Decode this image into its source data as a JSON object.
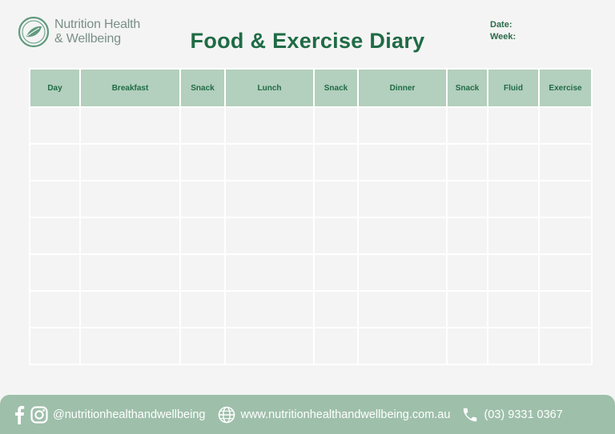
{
  "brand": {
    "line1": "Nutrition Health",
    "line2": "& Wellbeing"
  },
  "title": "Food & Exercise Diary",
  "meta": {
    "date_label": "Date:",
    "week_label": "Week:"
  },
  "table": {
    "columns": [
      "Day",
      "Breakfast",
      "Snack",
      "Lunch",
      "Snack",
      "Dinner",
      "Snack",
      "Fluid",
      "Exercise"
    ],
    "row_count": 7
  },
  "footer": {
    "social_handle": "@nutritionhealthandwellbeing",
    "website": "www.nutritionhealthandwellbeing.com.au",
    "phone": "(03) 9331 0367"
  },
  "colors": {
    "brand_green": "#1f6b45",
    "header_fill": "#b3cfbd",
    "footer_fill": "#9ebfaa",
    "background": "#f4f4f4"
  },
  "icons": [
    "leaf-logo-icon",
    "facebook-icon",
    "instagram-icon",
    "globe-icon",
    "phone-icon"
  ]
}
